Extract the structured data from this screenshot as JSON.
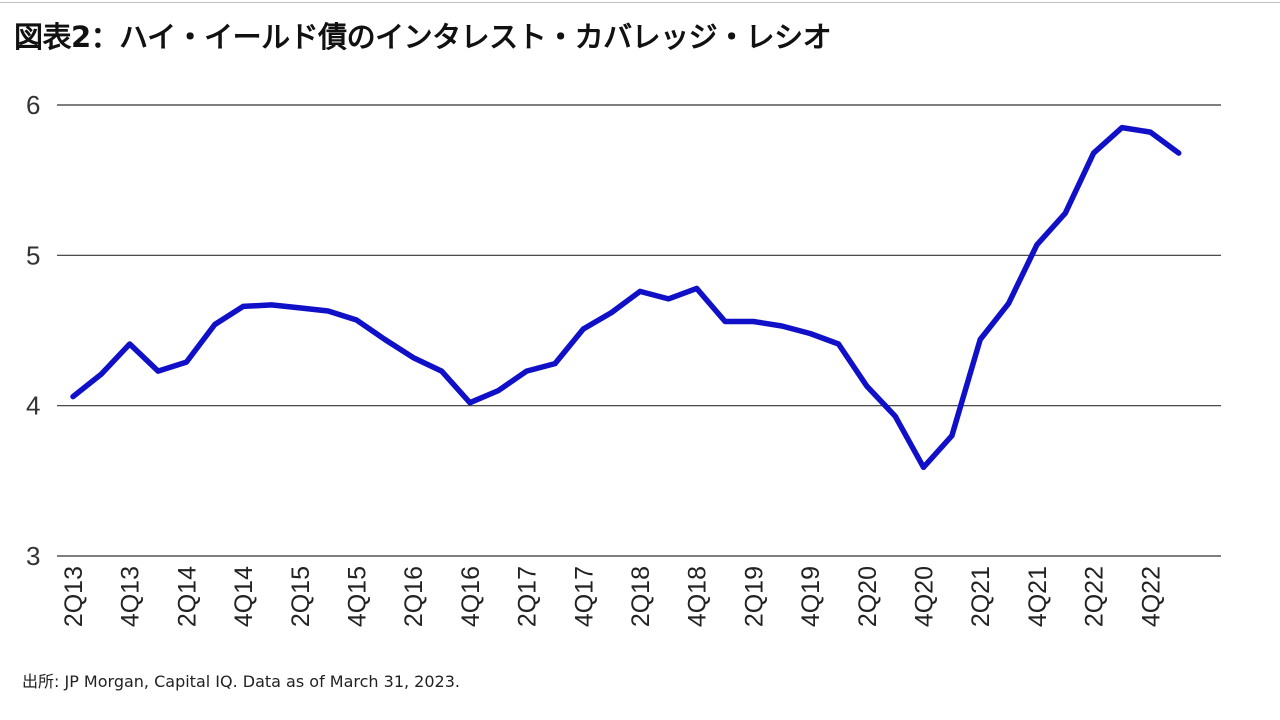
{
  "title": "図表2：ハイ・イールド債のインタレスト・カバレッジ・レシオ",
  "source": "出所: JP Morgan, Capital IQ. Data as of March 31, 2023.",
  "colors": {
    "line": "#1010c8",
    "grid": "#333333",
    "text": "#222222"
  },
  "chart_data": {
    "type": "line",
    "title": "図表2：ハイ・イールド債のインタレスト・カバレッジ・レシオ",
    "xlabel": "",
    "ylabel": "",
    "ylim": [
      3,
      6
    ],
    "yticks": [
      6,
      5,
      4,
      3
    ],
    "grid": true,
    "legend": "none",
    "x_tick_labels": [
      "2Q13",
      "4Q13",
      "2Q14",
      "4Q14",
      "2Q15",
      "4Q15",
      "2Q16",
      "4Q16",
      "2Q17",
      "4Q17",
      "2Q18",
      "4Q18",
      "2Q19",
      "4Q19",
      "2Q20",
      "4Q20",
      "2Q21",
      "4Q21",
      "2Q22",
      "4Q22"
    ],
    "x": [
      "2Q13",
      "3Q13",
      "4Q13",
      "1Q14",
      "2Q14",
      "3Q14",
      "4Q14",
      "1Q15",
      "2Q15",
      "3Q15",
      "4Q15",
      "1Q16",
      "2Q16",
      "3Q16",
      "4Q16",
      "1Q17",
      "2Q17",
      "3Q17",
      "4Q17",
      "1Q18",
      "2Q18",
      "3Q18",
      "4Q18",
      "1Q19",
      "2Q19",
      "3Q19",
      "4Q19",
      "1Q20",
      "2Q20",
      "3Q20",
      "4Q20",
      "1Q21",
      "2Q21",
      "3Q21",
      "4Q21",
      "1Q22",
      "2Q22",
      "3Q22",
      "4Q22",
      "1Q23"
    ],
    "series": [
      {
        "values": [
          4.06,
          4.21,
          4.41,
          4.23,
          4.29,
          4.54,
          4.66,
          4.67,
          4.65,
          4.63,
          4.57,
          4.44,
          4.32,
          4.23,
          4.02,
          4.1,
          4.23,
          4.28,
          4.51,
          4.62,
          4.76,
          4.71,
          4.78,
          4.56,
          4.56,
          4.53,
          4.48,
          4.41,
          4.13,
          3.93,
          3.59,
          3.8,
          4.44,
          4.68,
          5.07,
          5.28,
          5.68,
          5.85,
          5.82,
          5.68
        ]
      }
    ]
  }
}
